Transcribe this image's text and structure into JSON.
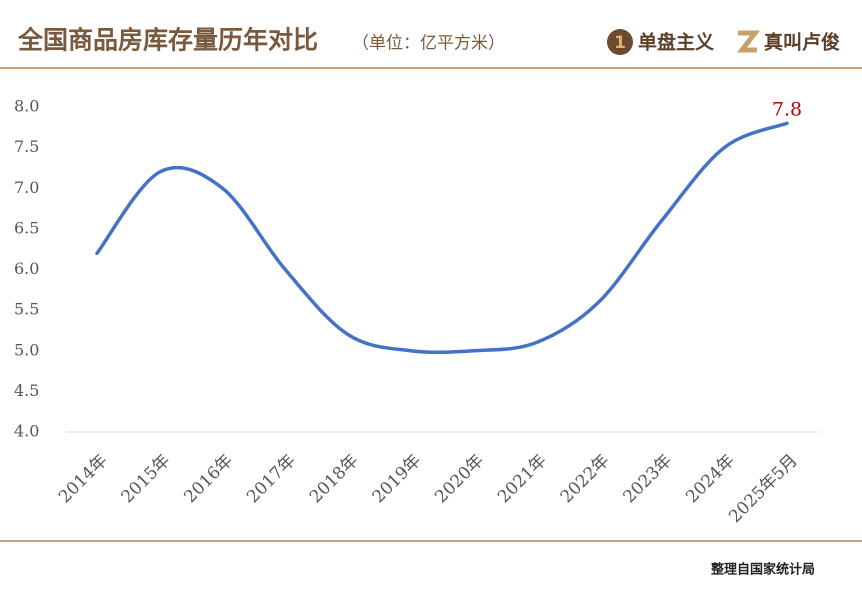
{
  "chart_data": {
    "type": "line",
    "title": "全国商品房库存量历年对比",
    "subtitle": "（单位：亿平方米）",
    "brands": [
      "单盘主义",
      "真叫卢俊"
    ],
    "source": "整理自国家统计局",
    "categories": [
      "2014年",
      "2015年",
      "2016年",
      "2017年",
      "2018年",
      "2019年",
      "2020年",
      "2021年",
      "2022年",
      "2023年",
      "2024年",
      "2025年5月"
    ],
    "series": [
      {
        "name": "商品房库存量",
        "color": "#4472c4",
        "values": [
          6.2,
          7.2,
          7.0,
          6.0,
          5.2,
          5.0,
          5.0,
          5.1,
          5.6,
          6.6,
          7.5,
          7.8
        ]
      }
    ],
    "ylim": [
      4,
      8
    ],
    "yticks": [
      {
        "value": 4,
        "label": "4.0"
      },
      {
        "value": 4.5,
        "label": "4.5"
      },
      {
        "value": 5,
        "label": "5.0"
      },
      {
        "value": 5.5,
        "label": "5.5"
      },
      {
        "value": 6,
        "label": "6.0"
      },
      {
        "value": 6.5,
        "label": "6.5"
      },
      {
        "value": 7,
        "label": "7.0"
      },
      {
        "value": 7.5,
        "label": "7.5"
      },
      {
        "value": 8,
        "label": "8.0"
      }
    ],
    "label_color": "#c00000"
  }
}
